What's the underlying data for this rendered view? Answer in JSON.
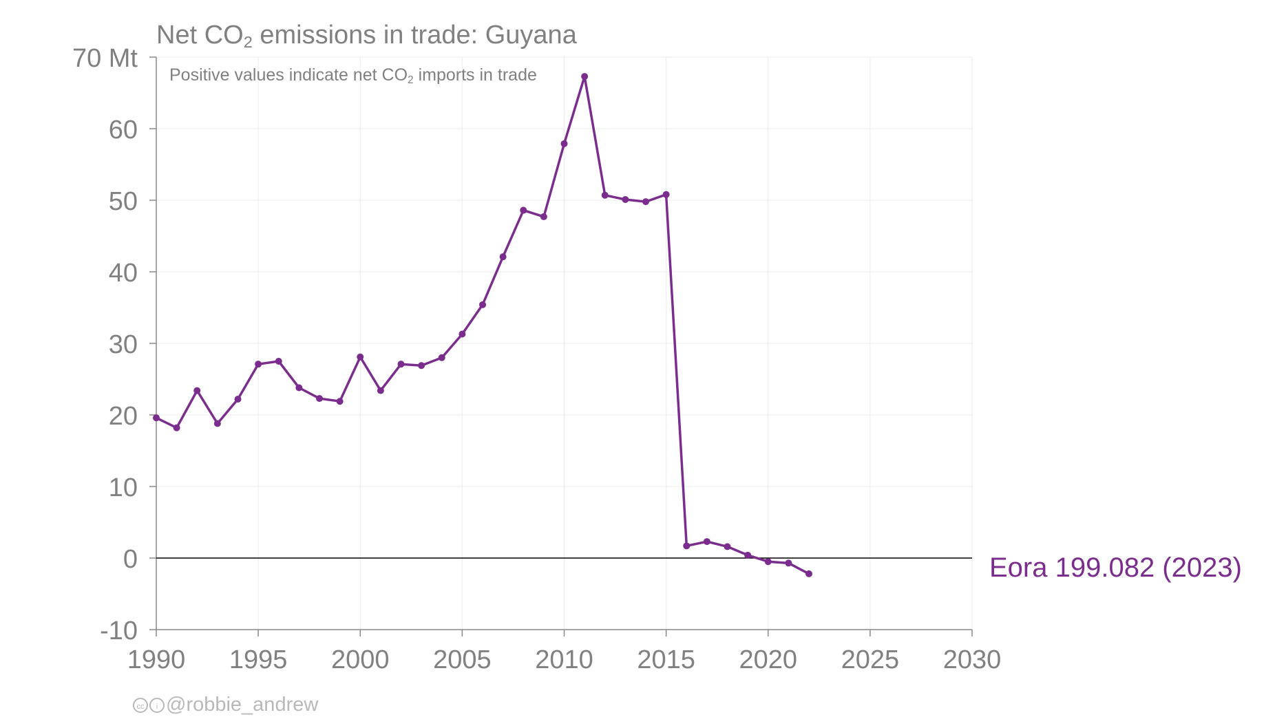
{
  "title": {
    "prefix": "Net CO",
    "sub": "2",
    "suffix": " emissions in trade: Guyana"
  },
  "subtitle": {
    "prefix": "Positive values indicate net CO",
    "sub": "2",
    "suffix": " imports in trade"
  },
  "credit": {
    "icons": [
      "cc-icon",
      "by-icon"
    ],
    "cc_glyph": "cc",
    "by_glyph": "i",
    "handle": "@robbie_andrew"
  },
  "colors": {
    "series": "#7b2d8e",
    "grid": "#ebebeb",
    "axis": "#888888",
    "zero_line": "#000000",
    "text": "#808080"
  },
  "chart_data": {
    "type": "line",
    "title": "Net CO2 emissions in trade: Guyana",
    "subtitle": "Positive values indicate net CO2 imports in trade",
    "xlim": [
      1990,
      2030
    ],
    "ylim": [
      -10,
      70
    ],
    "x_ticks": [
      "1990",
      "1995",
      "2000",
      "2005",
      "2010",
      "2015",
      "2020",
      "2025",
      "2030"
    ],
    "y_ticks": [
      "70 Mt",
      "60",
      "50",
      "40",
      "30",
      "20",
      "10",
      "0",
      "-10"
    ],
    "y_tick_values": [
      70,
      60,
      50,
      40,
      30,
      20,
      10,
      0,
      -10
    ],
    "grid": true,
    "series": [
      {
        "name": "Eora 199.082 (2023)",
        "x": [
          1990,
          1991,
          1992,
          1993,
          1994,
          1995,
          1996,
          1997,
          1998,
          1999,
          2000,
          2001,
          2002,
          2003,
          2004,
          2005,
          2006,
          2007,
          2008,
          2009,
          2010,
          2011,
          2012,
          2013,
          2014,
          2015,
          2016,
          2017,
          2018,
          2019,
          2020,
          2021,
          2022
        ],
        "y": [
          19.6,
          18.2,
          23.4,
          18.8,
          22.2,
          27.1,
          27.5,
          23.8,
          22.3,
          21.9,
          28.1,
          23.4,
          27.1,
          26.9,
          28.0,
          31.3,
          35.4,
          42.1,
          48.6,
          47.7,
          57.9,
          67.3,
          50.7,
          50.1,
          49.8,
          50.8,
          1.7,
          2.3,
          1.6,
          0.4,
          -0.5,
          -0.7,
          -2.2
        ]
      }
    ]
  }
}
